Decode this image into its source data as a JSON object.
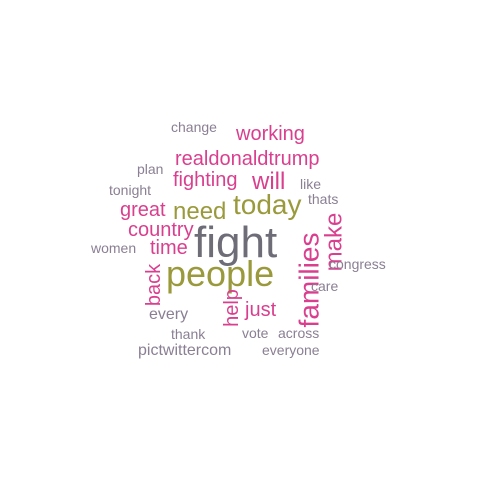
{
  "words": {
    "change": "change",
    "working": "working",
    "plan": "plan",
    "realdonaldtrump": "realdonaldtrump",
    "fighting": "fighting",
    "will": "will",
    "tonight": "tonight",
    "like": "like",
    "thats": "thats",
    "great": "great",
    "need": "need",
    "today": "today",
    "country": "country",
    "fight": "fight",
    "women": "women",
    "time": "time",
    "make": "make",
    "congress": "congress",
    "people": "people",
    "families": "families",
    "back": "back",
    "care": "care",
    "help": "help",
    "just": "just",
    "every": "every",
    "thank": "thank",
    "vote": "vote",
    "across": "across",
    "pictwittercom": "pictwittercom",
    "everyone": "everyone"
  },
  "palette": {
    "grey": "#8a7f93",
    "pink": "#d93f8e",
    "olive": "#9a9a3c",
    "dark": "#6e6d77",
    "background": "#ffffff"
  }
}
